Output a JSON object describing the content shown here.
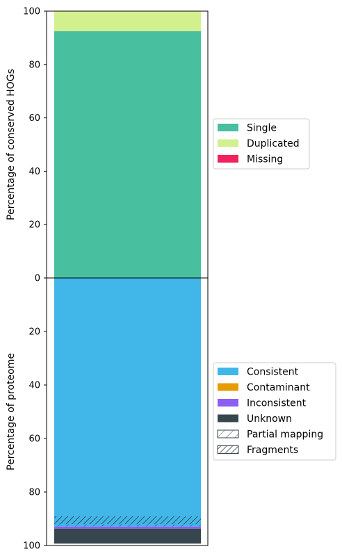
{
  "chart_data": [
    {
      "type": "bar",
      "stacked": true,
      "ylabel": "Percentage of conserved HOGs",
      "ylim": [
        0,
        100
      ],
      "yticks": [
        0,
        20,
        40,
        60,
        80,
        100
      ],
      "legend_position": "right",
      "series": [
        {
          "name": "Single",
          "value": 92.5,
          "color": "#48bf9f"
        },
        {
          "name": "Duplicated",
          "value": 7.5,
          "color": "#d3f08e"
        },
        {
          "name": "Missing",
          "value": 0.0,
          "color": "#f2215e"
        }
      ]
    },
    {
      "type": "bar",
      "stacked": true,
      "inverted": true,
      "ylabel": "Percentage of proteome",
      "ylim": [
        0,
        100
      ],
      "yticks": [
        0,
        20,
        40,
        60,
        80,
        100
      ],
      "legend_position": "right",
      "series": [
        {
          "name": "Consistent",
          "value": 92.9,
          "color": "#40b6e9",
          "partial_mapping": 0.9,
          "fragments": 2.9
        },
        {
          "name": "Contaminant",
          "value": 0.0,
          "color": "#e69c00"
        },
        {
          "name": "Inconsistent",
          "value": 0.8,
          "color": "#8c5ef3"
        },
        {
          "name": "Unknown",
          "value": 5.6,
          "color": "#37454f"
        }
      ],
      "hatch_legend": [
        {
          "name": "Partial mapping",
          "style": "sparse"
        },
        {
          "name": "Fragments",
          "style": "dense"
        }
      ]
    }
  ]
}
